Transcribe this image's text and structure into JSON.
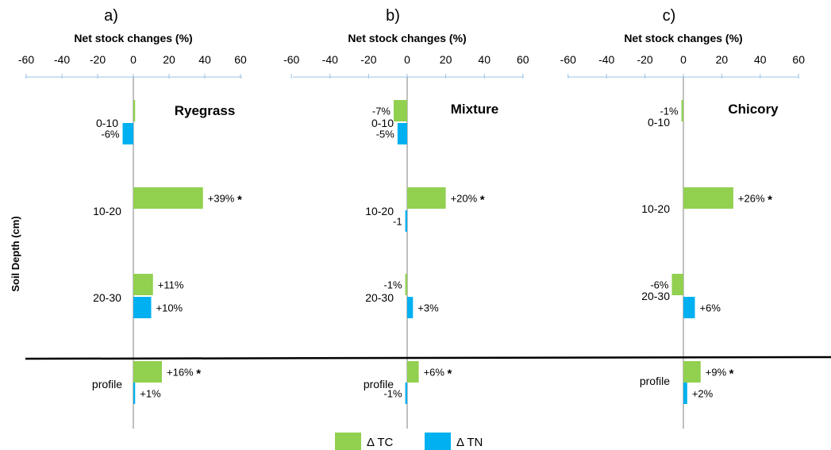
{
  "chart_data": [
    {
      "type": "bar",
      "panel_label": "a)",
      "title": "Ryegrass",
      "xlabel": "Net stock changes (%)",
      "ylabel": "Soil Depth (cm)",
      "xlim": [
        -60,
        60
      ],
      "x_ticks": [
        "-60",
        "-40",
        "-20",
        "0",
        "20",
        "40",
        "60"
      ],
      "categories": [
        "0-10",
        "10-20",
        "20-30",
        "profile"
      ],
      "series": [
        {
          "name": "Δ TC",
          "color": "#92D050",
          "values": [
            1,
            39,
            11,
            16
          ],
          "labels": [
            "",
            "+39%",
            "+11%",
            "+16%"
          ],
          "significant": [
            false,
            true,
            false,
            true
          ]
        },
        {
          "name": "Δ TN",
          "color": "#00B0F0",
          "values": [
            -6,
            0,
            10,
            1
          ],
          "labels": [
            "-6%",
            "",
            "+10%",
            "+1%"
          ],
          "significant": [
            false,
            false,
            false,
            false
          ]
        }
      ]
    },
    {
      "type": "bar",
      "panel_label": "b)",
      "title": "Mixture",
      "xlabel": "Net stock changes (%)",
      "xlim": [
        -60,
        60
      ],
      "x_ticks": [
        "-60",
        "-40",
        "-20",
        "0",
        "20",
        "40",
        "60"
      ],
      "categories": [
        "0-10",
        "10-20",
        "20-30",
        "profile"
      ],
      "series": [
        {
          "name": "Δ TC",
          "color": "#92D050",
          "values": [
            -7,
            20,
            -1,
            6
          ],
          "labels": [
            "-7%",
            "+20%",
            "-1%",
            "+6%"
          ],
          "significant": [
            false,
            true,
            false,
            true
          ]
        },
        {
          "name": "Δ TN",
          "color": "#00B0F0",
          "values": [
            -5,
            -1,
            3,
            -1
          ],
          "labels": [
            "-5%",
            "-1",
            "+3%",
            "-1%"
          ],
          "significant": [
            false,
            false,
            false,
            false
          ]
        }
      ]
    },
    {
      "type": "bar",
      "panel_label": "c)",
      "title": "Chicory",
      "xlabel": "Net stock changes (%)",
      "xlim": [
        -60,
        60
      ],
      "x_ticks": [
        "-60",
        "-40",
        "-20",
        "0",
        "20",
        "40",
        "60"
      ],
      "categories": [
        "0-10",
        "10-20",
        "20-30",
        "profile"
      ],
      "series": [
        {
          "name": "Δ TC",
          "color": "#92D050",
          "values": [
            -1,
            26,
            -6,
            9
          ],
          "labels": [
            "-1%",
            "+26%",
            "-6%",
            "+9%"
          ],
          "significant": [
            false,
            true,
            false,
            true
          ]
        },
        {
          "name": "Δ TN",
          "color": "#00B0F0",
          "values": [
            0,
            0,
            6,
            2
          ],
          "labels": [
            "",
            "",
            "+6%",
            "+2%"
          ],
          "significant": [
            false,
            false,
            false,
            false
          ]
        }
      ]
    }
  ],
  "legend": {
    "position": "bottom-center",
    "items": [
      {
        "label": "Δ TC",
        "color": "#92D050"
      },
      {
        "label": "Δ TN",
        "color": "#00B0F0"
      }
    ]
  },
  "significance_marker": "*"
}
